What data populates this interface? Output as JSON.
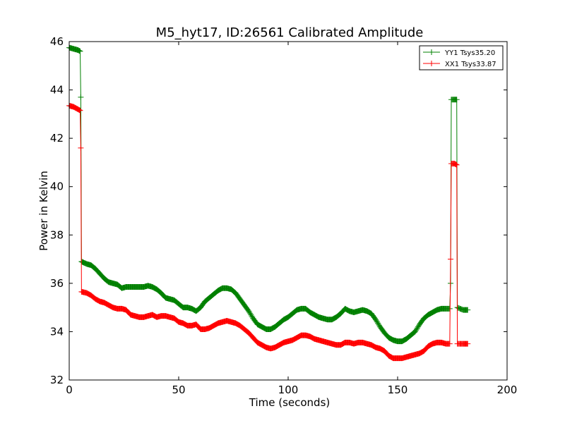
{
  "chart_data": {
    "type": "line",
    "title": "M5_hyt17, ID:26561 Calibrated Amplitude",
    "xlabel": "Time (seconds)",
    "ylabel": "Power in Kelvin",
    "xlim": [
      0,
      200
    ],
    "ylim": [
      32,
      46
    ],
    "xticks": [
      0,
      50,
      100,
      150,
      200
    ],
    "yticks": [
      32,
      34,
      36,
      38,
      40,
      42,
      44,
      46
    ],
    "grid": false,
    "legend_position": "top-right",
    "marker": "plus",
    "series": [
      {
        "name": "YY1 Tsys35.20",
        "color": "#008000",
        "points": [
          [
            0,
            45.75
          ],
          [
            2,
            45.7
          ],
          [
            4,
            45.65
          ],
          [
            5,
            45.6
          ],
          [
            5.3,
            43.7
          ],
          [
            5.6,
            36.9
          ],
          [
            8,
            36.8
          ],
          [
            10,
            36.75
          ],
          [
            12,
            36.6
          ],
          [
            14,
            36.4
          ],
          [
            16,
            36.2
          ],
          [
            18,
            36.05
          ],
          [
            20,
            36.0
          ],
          [
            22,
            35.95
          ],
          [
            24,
            35.8
          ],
          [
            26,
            35.85
          ],
          [
            28,
            35.85
          ],
          [
            30,
            35.85
          ],
          [
            32,
            35.85
          ],
          [
            34,
            35.85
          ],
          [
            36,
            35.9
          ],
          [
            38,
            35.85
          ],
          [
            40,
            35.75
          ],
          [
            42,
            35.6
          ],
          [
            44,
            35.4
          ],
          [
            46,
            35.35
          ],
          [
            48,
            35.3
          ],
          [
            50,
            35.15
          ],
          [
            52,
            35.0
          ],
          [
            54,
            35.0
          ],
          [
            56,
            34.95
          ],
          [
            58,
            34.85
          ],
          [
            60,
            35.0
          ],
          [
            62,
            35.25
          ],
          [
            64,
            35.4
          ],
          [
            66,
            35.55
          ],
          [
            68,
            35.7
          ],
          [
            70,
            35.8
          ],
          [
            72,
            35.8
          ],
          [
            74,
            35.75
          ],
          [
            76,
            35.6
          ],
          [
            78,
            35.35
          ],
          [
            80,
            35.1
          ],
          [
            82,
            34.85
          ],
          [
            84,
            34.55
          ],
          [
            86,
            34.3
          ],
          [
            88,
            34.2
          ],
          [
            90,
            34.1
          ],
          [
            92,
            34.1
          ],
          [
            94,
            34.2
          ],
          [
            96,
            34.35
          ],
          [
            98,
            34.5
          ],
          [
            100,
            34.6
          ],
          [
            102,
            34.75
          ],
          [
            104,
            34.9
          ],
          [
            106,
            34.95
          ],
          [
            108,
            34.95
          ],
          [
            110,
            34.8
          ],
          [
            112,
            34.7
          ],
          [
            114,
            34.6
          ],
          [
            116,
            34.55
          ],
          [
            118,
            34.5
          ],
          [
            120,
            34.5
          ],
          [
            122,
            34.6
          ],
          [
            124,
            34.75
          ],
          [
            126,
            34.95
          ],
          [
            128,
            34.85
          ],
          [
            130,
            34.8
          ],
          [
            132,
            34.85
          ],
          [
            134,
            34.9
          ],
          [
            136,
            34.85
          ],
          [
            138,
            34.75
          ],
          [
            140,
            34.5
          ],
          [
            142,
            34.2
          ],
          [
            144,
            33.95
          ],
          [
            146,
            33.75
          ],
          [
            148,
            33.65
          ],
          [
            150,
            33.6
          ],
          [
            152,
            33.6
          ],
          [
            154,
            33.7
          ],
          [
            156,
            33.85
          ],
          [
            158,
            34.0
          ],
          [
            160,
            34.3
          ],
          [
            162,
            34.55
          ],
          [
            164,
            34.7
          ],
          [
            166,
            34.8
          ],
          [
            168,
            34.9
          ],
          [
            170,
            34.95
          ],
          [
            172,
            34.95
          ],
          [
            173.8,
            34.95
          ],
          [
            174.2,
            36.0
          ],
          [
            174.5,
            43.6
          ],
          [
            176,
            43.6
          ],
          [
            177,
            43.6
          ],
          [
            177.3,
            35.0
          ],
          [
            178.5,
            34.95
          ],
          [
            180,
            34.9
          ],
          [
            182,
            34.9
          ]
        ]
      },
      {
        "name": "XX1 Tsys33.87",
        "color": "#ff0000",
        "points": [
          [
            0,
            43.35
          ],
          [
            2,
            43.3
          ],
          [
            4,
            43.2
          ],
          [
            5,
            43.15
          ],
          [
            5.3,
            41.6
          ],
          [
            5.6,
            35.65
          ],
          [
            8,
            35.6
          ],
          [
            10,
            35.5
          ],
          [
            12,
            35.35
          ],
          [
            14,
            35.25
          ],
          [
            16,
            35.2
          ],
          [
            18,
            35.1
          ],
          [
            20,
            35.0
          ],
          [
            22,
            34.95
          ],
          [
            24,
            34.95
          ],
          [
            26,
            34.9
          ],
          [
            28,
            34.7
          ],
          [
            30,
            34.65
          ],
          [
            32,
            34.6
          ],
          [
            34,
            34.6
          ],
          [
            36,
            34.65
          ],
          [
            38,
            34.7
          ],
          [
            40,
            34.6
          ],
          [
            42,
            34.65
          ],
          [
            44,
            34.65
          ],
          [
            46,
            34.6
          ],
          [
            48,
            34.55
          ],
          [
            50,
            34.4
          ],
          [
            52,
            34.35
          ],
          [
            54,
            34.25
          ],
          [
            56,
            34.25
          ],
          [
            58,
            34.3
          ],
          [
            60,
            34.1
          ],
          [
            62,
            34.1
          ],
          [
            64,
            34.15
          ],
          [
            66,
            34.25
          ],
          [
            68,
            34.35
          ],
          [
            70,
            34.4
          ],
          [
            72,
            34.45
          ],
          [
            74,
            34.4
          ],
          [
            76,
            34.35
          ],
          [
            78,
            34.25
          ],
          [
            80,
            34.1
          ],
          [
            82,
            33.95
          ],
          [
            84,
            33.75
          ],
          [
            86,
            33.55
          ],
          [
            88,
            33.45
          ],
          [
            90,
            33.35
          ],
          [
            92,
            33.3
          ],
          [
            94,
            33.35
          ],
          [
            96,
            33.45
          ],
          [
            98,
            33.55
          ],
          [
            100,
            33.6
          ],
          [
            102,
            33.65
          ],
          [
            104,
            33.75
          ],
          [
            106,
            33.85
          ],
          [
            108,
            33.85
          ],
          [
            110,
            33.8
          ],
          [
            112,
            33.7
          ],
          [
            114,
            33.65
          ],
          [
            116,
            33.6
          ],
          [
            118,
            33.55
          ],
          [
            120,
            33.5
          ],
          [
            122,
            33.45
          ],
          [
            124,
            33.45
          ],
          [
            126,
            33.55
          ],
          [
            128,
            33.55
          ],
          [
            130,
            33.5
          ],
          [
            132,
            33.55
          ],
          [
            134,
            33.55
          ],
          [
            136,
            33.5
          ],
          [
            138,
            33.45
          ],
          [
            140,
            33.35
          ],
          [
            142,
            33.3
          ],
          [
            144,
            33.2
          ],
          [
            146,
            33.0
          ],
          [
            148,
            32.9
          ],
          [
            150,
            32.9
          ],
          [
            152,
            32.9
          ],
          [
            154,
            32.95
          ],
          [
            156,
            33.0
          ],
          [
            158,
            33.05
          ],
          [
            160,
            33.1
          ],
          [
            162,
            33.2
          ],
          [
            164,
            33.4
          ],
          [
            166,
            33.5
          ],
          [
            168,
            33.55
          ],
          [
            170,
            33.55
          ],
          [
            172,
            33.5
          ],
          [
            173.8,
            33.5
          ],
          [
            174.2,
            37.0
          ],
          [
            174.5,
            40.95
          ],
          [
            176,
            40.95
          ],
          [
            177,
            40.9
          ],
          [
            177.3,
            33.5
          ],
          [
            178.5,
            33.5
          ],
          [
            180,
            33.5
          ],
          [
            182,
            33.5
          ]
        ]
      }
    ]
  }
}
